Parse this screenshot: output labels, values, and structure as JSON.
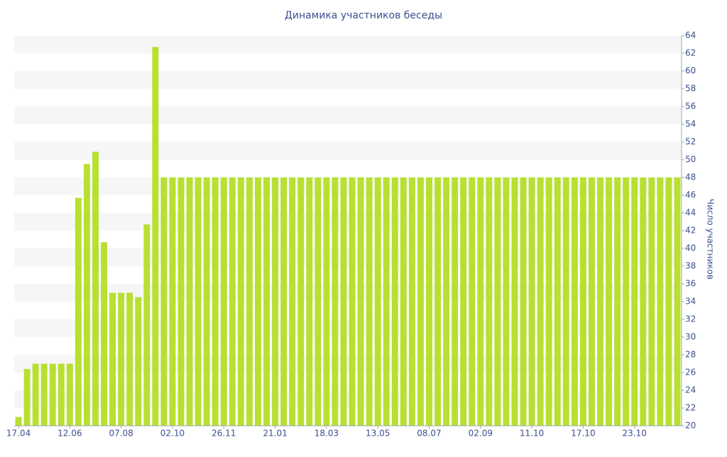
{
  "chart_data": {
    "type": "bar",
    "title": "Динамика участников беседы",
    "y_label": "Число участников",
    "color": "#b8e030",
    "categories": [
      "17.04",
      null,
      null,
      null,
      null,
      null,
      "12.06",
      null,
      null,
      null,
      null,
      null,
      "07.08",
      null,
      null,
      null,
      null,
      null,
      "02.10",
      null,
      null,
      null,
      null,
      null,
      "26.11",
      null,
      null,
      null,
      null,
      null,
      "21.01",
      null,
      null,
      null,
      null,
      null,
      "18.03",
      null,
      null,
      null,
      null,
      null,
      "13.05",
      null,
      null,
      null,
      null,
      null,
      "08.07",
      null,
      null,
      null,
      null,
      null,
      "02.09",
      null,
      null,
      null,
      null,
      null,
      "11.10",
      null,
      null,
      null,
      null,
      null,
      "17.10",
      null,
      null,
      null,
      null,
      null,
      "23.10",
      null,
      null,
      null,
      null,
      null
    ],
    "values": [
      21,
      26.4,
      27,
      27,
      27,
      27,
      27,
      45.7,
      49.5,
      50.9,
      40.7,
      35,
      35,
      35,
      34.5,
      42.7,
      62.7,
      48,
      48,
      48,
      48,
      48,
      48,
      48,
      48,
      48,
      48,
      48,
      48,
      48,
      48,
      48,
      48,
      48,
      48,
      48,
      48,
      48,
      48,
      48,
      48,
      48,
      48,
      48,
      48,
      48,
      48,
      48,
      48,
      48,
      48,
      48,
      48,
      48,
      48,
      48,
      48,
      48,
      48,
      48,
      48,
      48,
      48,
      48,
      48,
      48,
      48,
      48,
      48,
      48,
      48,
      48,
      48,
      48,
      48,
      48,
      48,
      48
    ],
    "ylim": [
      20,
      64
    ],
    "yticks": [
      20,
      22,
      24,
      26,
      28,
      30,
      32,
      34,
      36,
      38,
      40,
      42,
      44,
      46,
      48,
      50,
      52,
      54,
      56,
      58,
      60,
      62,
      64
    ],
    "y_axis_side": "right",
    "grid": "bands"
  }
}
